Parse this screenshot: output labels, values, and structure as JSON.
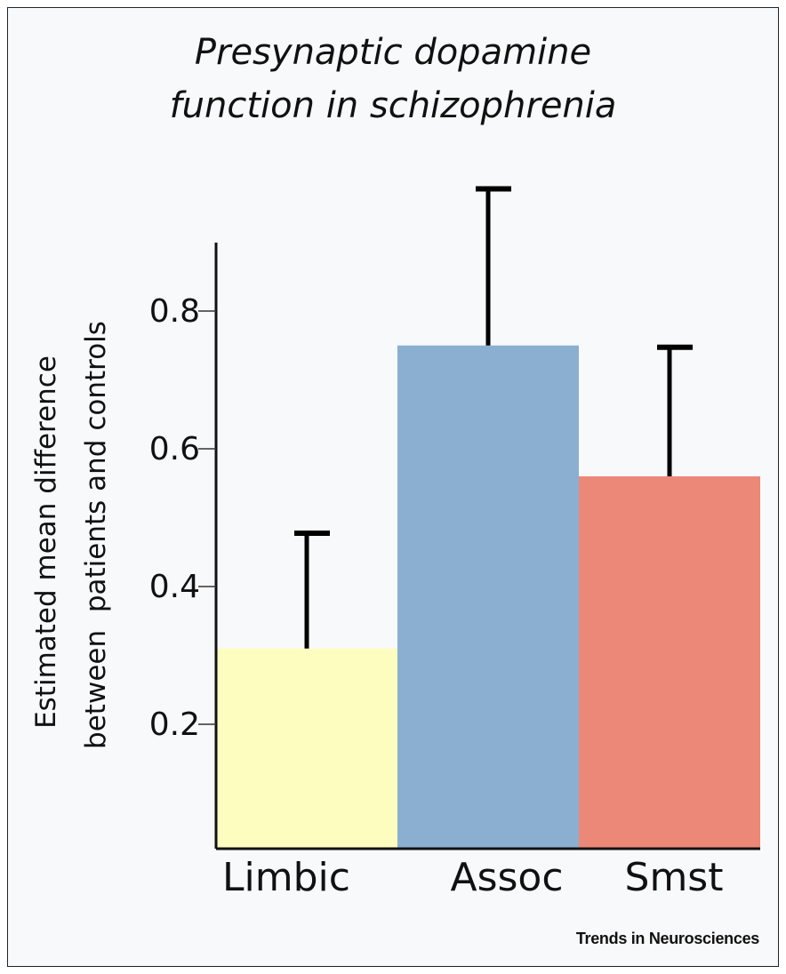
{
  "chart_data": {
    "type": "bar",
    "title": [
      "Presynaptic dopamine",
      "function in schizophrenia"
    ],
    "ylabel": [
      "Estimated mean difference",
      "between  patients and controls"
    ],
    "xlabel": "",
    "categories": [
      "Limbic",
      "Assoc",
      "Smst"
    ],
    "values": [
      0.31,
      0.75,
      0.56
    ],
    "error_upper": [
      0.48,
      0.98,
      0.75
    ],
    "colors": [
      "#fefdc0",
      "#8aafd0",
      "#ec8878"
    ],
    "yticks": [
      0.2,
      0.4,
      0.6,
      0.8
    ],
    "ytick_labels": [
      "0.2",
      "0.4",
      "0.6",
      "0.8"
    ],
    "ylim": [
      0,
      0.9
    ],
    "grid": false
  },
  "footer": "Trends in Neurosciences"
}
